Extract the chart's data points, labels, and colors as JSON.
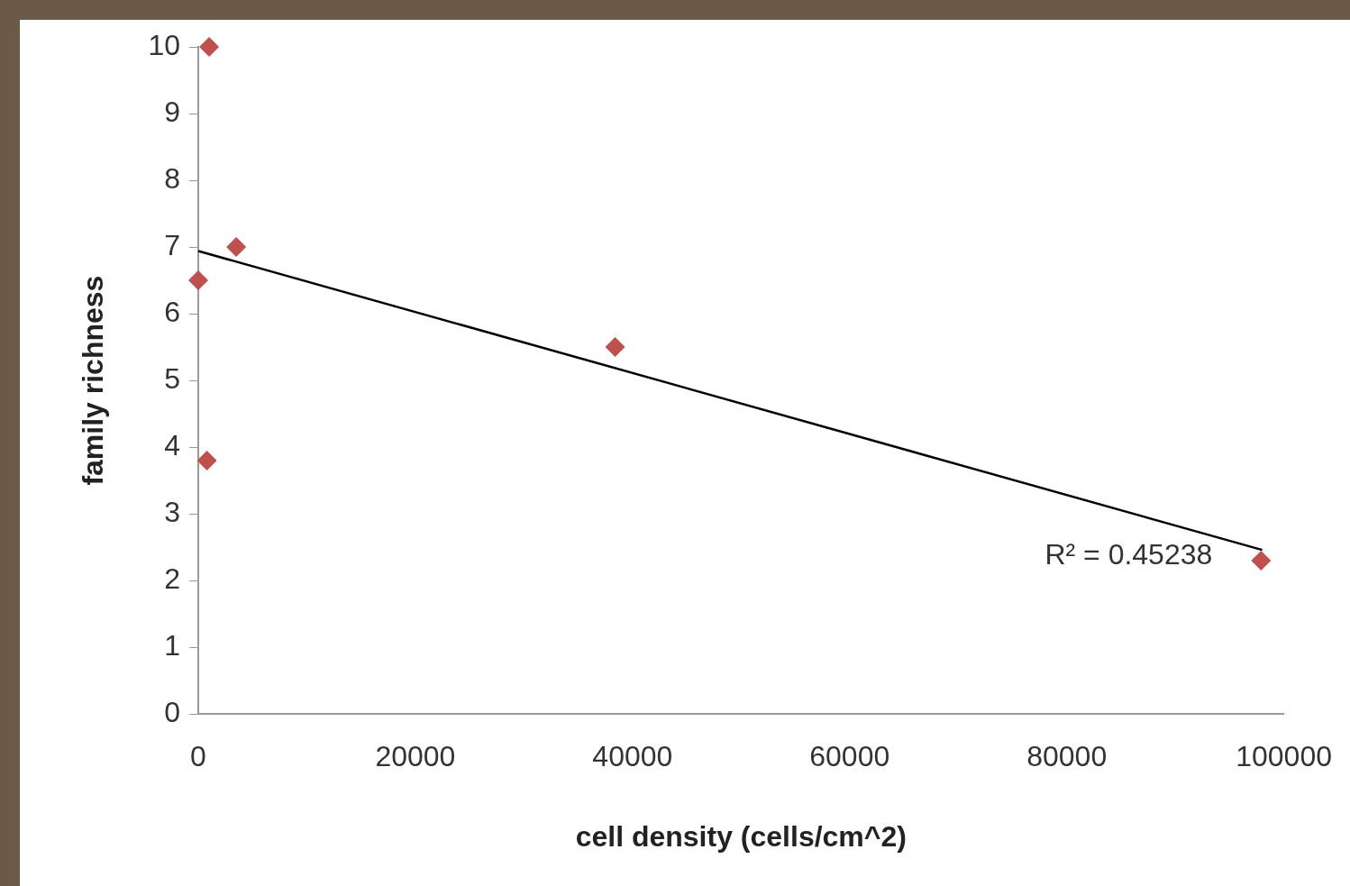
{
  "chart_data": {
    "type": "scatter",
    "xlabel": "cell density (cells/cm^2)",
    "ylabel": "family richness",
    "marker": "diamond",
    "grid": false,
    "legend": false,
    "xlim": [
      0,
      100000
    ],
    "xticks": [
      0,
      20000,
      40000,
      60000,
      80000,
      100000
    ],
    "ylim": [
      0,
      10
    ],
    "yticks": [
      0,
      1,
      2,
      3,
      4,
      5,
      6,
      7,
      8,
      9,
      10
    ],
    "series": [
      {
        "color": "#c0504d",
        "x": [
          1000,
          3500,
          0,
          800,
          38400,
          97900
        ],
        "values": [
          10,
          7,
          6.5,
          3.8,
          5.5,
          2.3
        ]
      },
      {
        "type": "line",
        "color": "#000000",
        "marker": "none",
        "x": [
          0,
          98000
        ],
        "values": [
          6.94,
          2.46
        ]
      }
    ],
    "annotations": [
      "R² = 0.45238"
    ]
  }
}
